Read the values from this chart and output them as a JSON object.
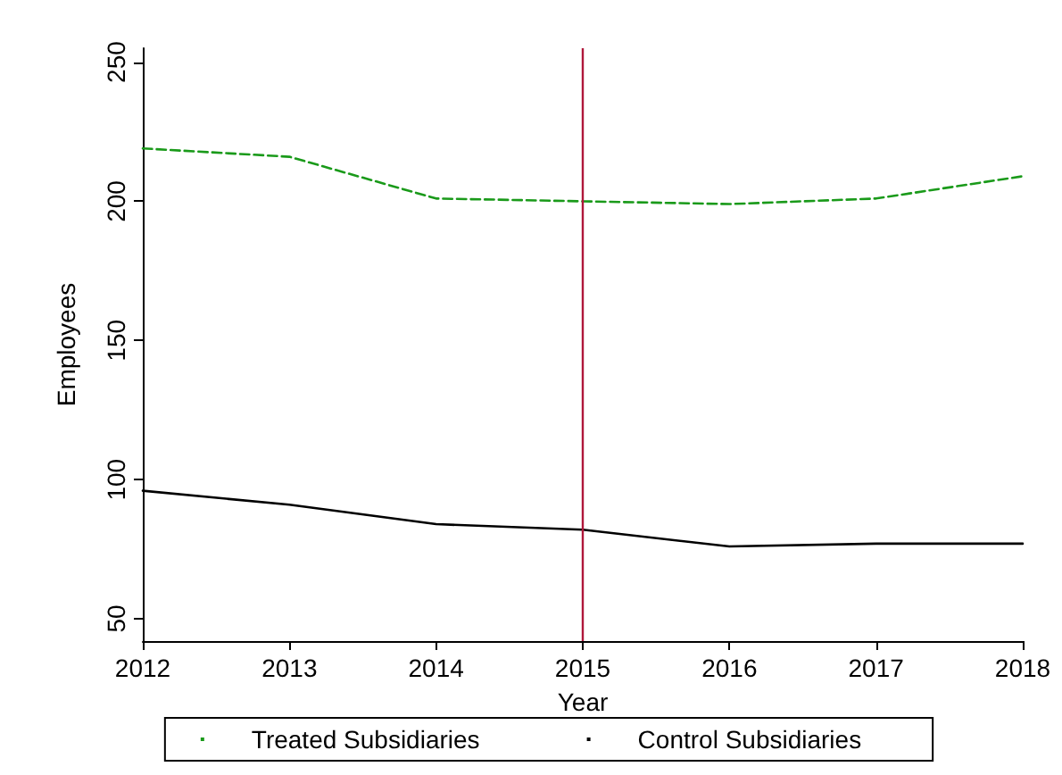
{
  "chart_data": {
    "type": "line",
    "xlabel": "Year",
    "ylabel": "Employees",
    "x": [
      2012,
      2013,
      2014,
      2015,
      2016,
      2017,
      2018
    ],
    "series": [
      {
        "name": "Treated Subsidiaries",
        "color": "#1a9a1a",
        "line_style": "dashed",
        "values": [
          219,
          216,
          201,
          200,
          199,
          201,
          209
        ]
      },
      {
        "name": "Control Subsidiaries",
        "color": "#000000",
        "line_style": "solid",
        "values": [
          96,
          91,
          84,
          82,
          76,
          77,
          77
        ]
      }
    ],
    "xlim": [
      2012,
      2018
    ],
    "xticks": [
      2012,
      2013,
      2014,
      2015,
      2016,
      2017,
      2018
    ],
    "ylim": [
      42,
      255
    ],
    "yticks": [
      50,
      100,
      150,
      200,
      250
    ],
    "ref_lines": [
      {
        "axis": "x",
        "value": 2015,
        "color": "#b0173a",
        "line_style": "solid"
      }
    ],
    "grid": false,
    "legend": "bottom",
    "marker": "none"
  }
}
